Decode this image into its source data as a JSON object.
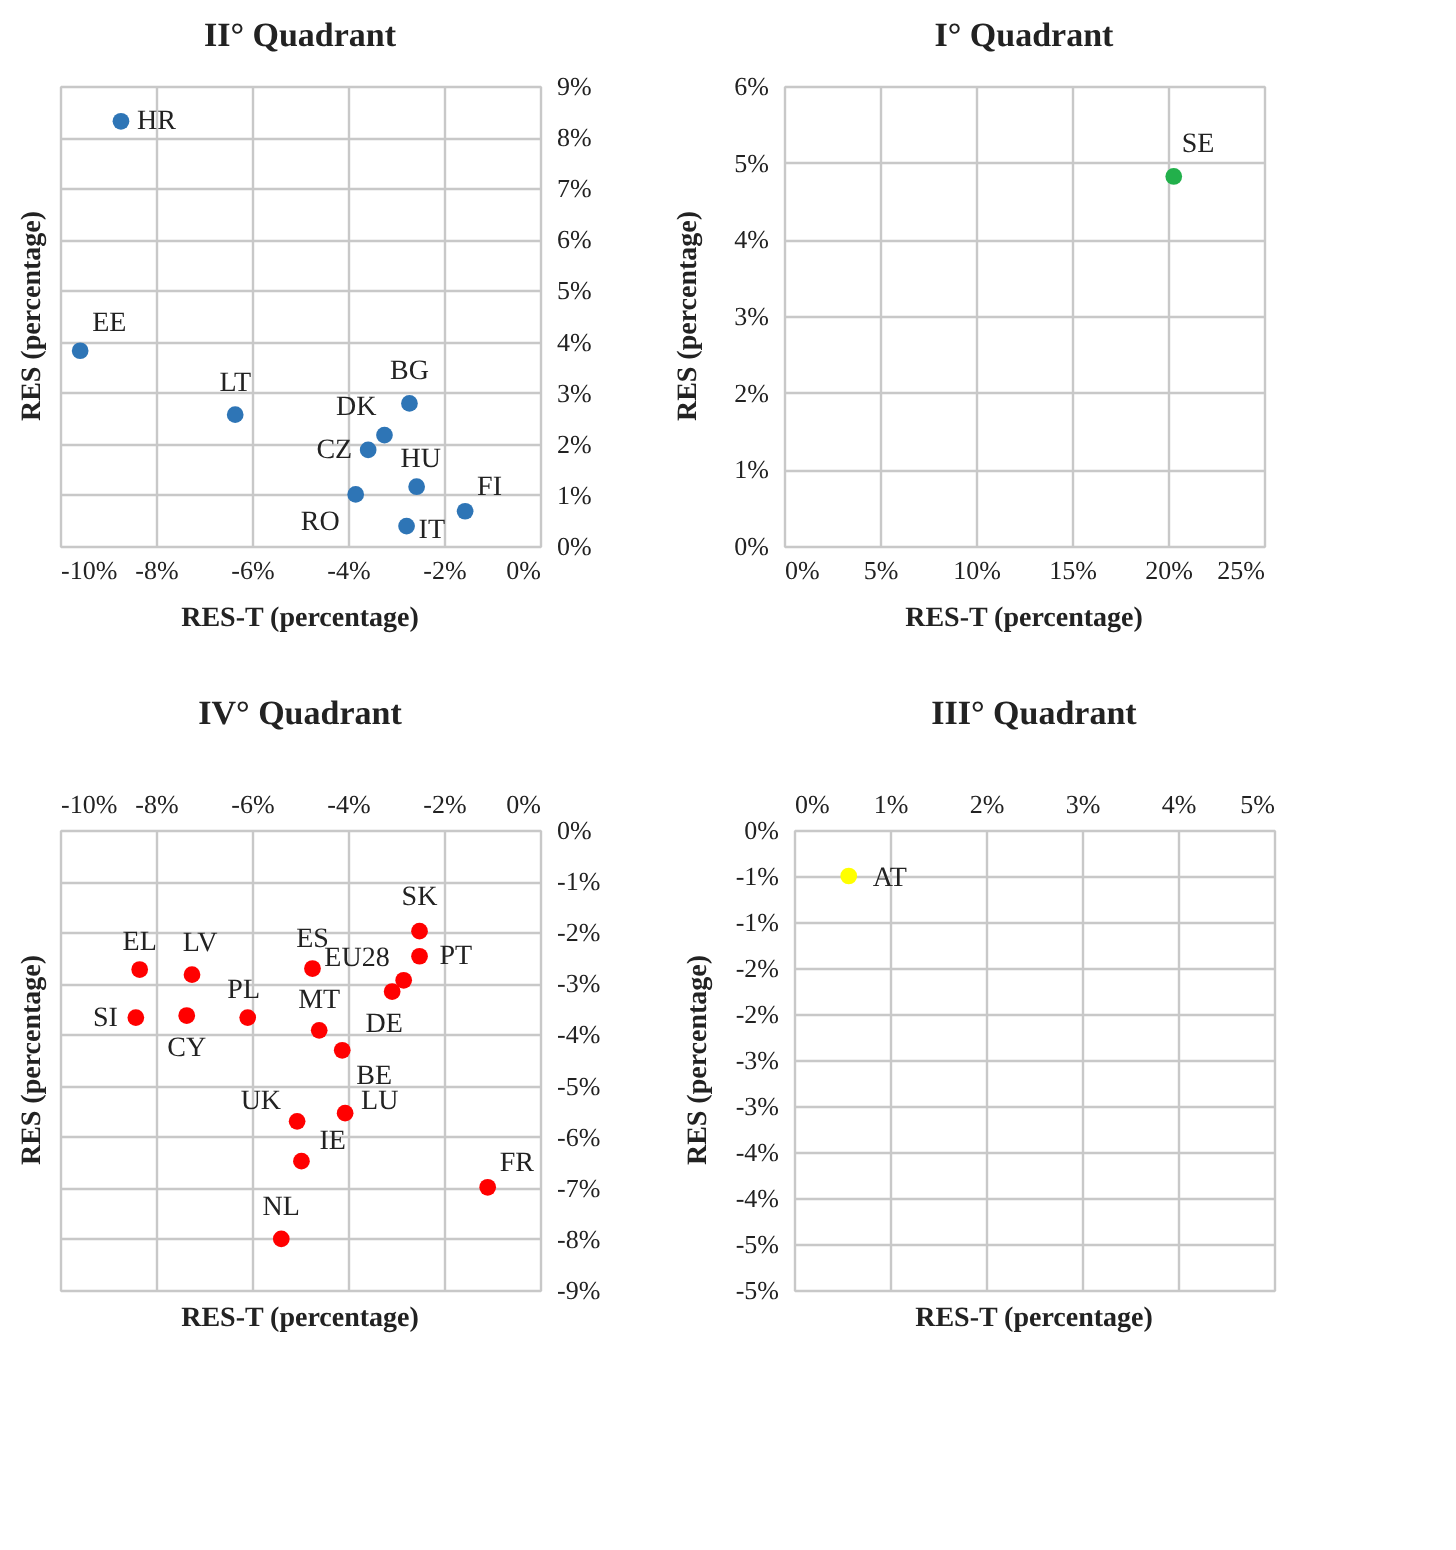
{
  "chart_data": [
    {
      "type": "scatter",
      "title": "II° Quadrant",
      "xlabel": "RES-T (percentage)",
      "ylabel": "RES (percentage)",
      "x": [
        -8.73,
        -9.58,
        -6.35,
        -2.72,
        -3.24,
        -3.58,
        -2.57,
        -1.56,
        -3.84,
        -2.78
      ],
      "series": [
        {
          "color": "#2e75b6",
          "values": [
            8.31,
            3.82,
            2.57,
            2.79,
            2.17,
            1.88,
            1.16,
            0.68,
            1.01,
            0.39
          ]
        }
      ],
      "xlim": [
        -10,
        0
      ],
      "ylim": [
        0,
        9
      ],
      "xticks": [
        {
          "value": -10,
          "label": "-10%"
        },
        {
          "value": -8,
          "label": "-8%"
        },
        {
          "value": -6,
          "label": "-6%"
        },
        {
          "value": -4,
          "label": "-4%"
        },
        {
          "value": -2,
          "label": "-2%"
        },
        {
          "value": 0,
          "label": "0%"
        }
      ],
      "yticks": [
        {
          "value": 0,
          "label": "0%"
        },
        {
          "value": 1,
          "label": "1%"
        },
        {
          "value": 2,
          "label": "2%"
        },
        {
          "value": 3,
          "label": "3%"
        },
        {
          "value": 4,
          "label": "4%"
        },
        {
          "value": 5,
          "label": "5%"
        },
        {
          "value": 6,
          "label": "6%"
        },
        {
          "value": 7,
          "label": "7%"
        },
        {
          "value": 8,
          "label": "8%"
        },
        {
          "value": 9,
          "label": "9%"
        }
      ],
      "grid": true,
      "marker": "circle",
      "annotations": [
        {
          "text": "HR",
          "x": -8.73,
          "y": 8.31
        },
        {
          "text": "EE",
          "x": -9.58,
          "y": 3.82
        },
        {
          "text": "LT",
          "x": -6.35,
          "y": 2.57
        },
        {
          "text": "BG",
          "x": -2.72,
          "y": 2.79
        },
        {
          "text": "DK",
          "x": -3.24,
          "y": 2.17
        },
        {
          "text": "CZ",
          "x": -3.58,
          "y": 1.88
        },
        {
          "text": "HU",
          "x": -2.57,
          "y": 1.16
        },
        {
          "text": "FI",
          "x": -1.56,
          "y": 0.68
        },
        {
          "text": "RO",
          "x": -3.84,
          "y": 1.01
        },
        {
          "text": "IT",
          "x": -2.78,
          "y": 0.39
        }
      ]
    },
    {
      "type": "scatter",
      "title": "I° Quadrant",
      "xlabel": "RES-T (percentage)",
      "ylabel": "RES (percentage)",
      "x": [
        20.3
      ],
      "series": [
        {
          "color": "#22b04b",
          "values": [
            4.82
          ]
        }
      ],
      "xlim": [
        0,
        25
      ],
      "ylim": [
        0,
        6
      ],
      "xticks": [
        {
          "value": 0,
          "label": "0%"
        },
        {
          "value": 5,
          "label": "5%"
        },
        {
          "value": 10,
          "label": "10%"
        },
        {
          "value": 15,
          "label": "15%"
        },
        {
          "value": 20,
          "label": "20%"
        },
        {
          "value": 25,
          "label": "25%"
        }
      ],
      "yticks": [
        {
          "value": 0,
          "label": "0%"
        },
        {
          "value": 1,
          "label": "1%"
        },
        {
          "value": 2,
          "label": "2%"
        },
        {
          "value": 3,
          "label": "3%"
        },
        {
          "value": 4,
          "label": "4%"
        },
        {
          "value": 5,
          "label": "5%"
        },
        {
          "value": 6,
          "label": "6%"
        }
      ],
      "grid": true,
      "marker": "circle",
      "annotations": [
        {
          "text": "SE",
          "x": 20.3,
          "y": 4.82
        }
      ]
    },
    {
      "type": "scatter",
      "title": "IV° Quadrant",
      "xlabel": "RES-T (percentage)",
      "ylabel": "RES (percentage)",
      "x": [
        -8.34,
        -7.25,
        -8.42,
        -7.36,
        -6.09,
        -4.74,
        -2.84,
        -3.08,
        -4.6,
        -4.12,
        -2.51,
        -2.51,
        -5.06,
        -4.06,
        -4.97,
        -1.09,
        -5.39
      ],
      "series": [
        {
          "color": "#ff0000",
          "values": [
            -2.73,
            -2.83,
            -3.67,
            -3.63,
            -3.67,
            -2.71,
            -2.94,
            -3.16,
            -3.92,
            -4.31,
            -1.98,
            -2.47,
            -5.7,
            -5.54,
            -6.48,
            -6.99,
            -8.0
          ]
        }
      ],
      "xlim": [
        -10,
        0
      ],
      "ylim": [
        -9,
        0
      ],
      "xticks": [
        {
          "value": -10,
          "label": "-10%"
        },
        {
          "value": -8,
          "label": "-8%"
        },
        {
          "value": -6,
          "label": "-6%"
        },
        {
          "value": -4,
          "label": "-4%"
        },
        {
          "value": -2,
          "label": "-2%"
        },
        {
          "value": 0,
          "label": "0%"
        }
      ],
      "yticks": [
        {
          "value": 0,
          "label": "0%"
        },
        {
          "value": -1,
          "label": "-1%"
        },
        {
          "value": -2,
          "label": "-2%"
        },
        {
          "value": -3,
          "label": "-3%"
        },
        {
          "value": -4,
          "label": "-4%"
        },
        {
          "value": -5,
          "label": "-5%"
        },
        {
          "value": -6,
          "label": "-6%"
        },
        {
          "value": -7,
          "label": "-7%"
        },
        {
          "value": -8,
          "label": "-8%"
        },
        {
          "value": -9,
          "label": "-9%"
        }
      ],
      "grid": true,
      "marker": "circle",
      "annotations": [
        {
          "text": "EL",
          "x": -8.34,
          "y": -2.73
        },
        {
          "text": "LV",
          "x": -7.25,
          "y": -2.83
        },
        {
          "text": "SI",
          "x": -8.42,
          "y": -3.67
        },
        {
          "text": "CY",
          "x": -7.36,
          "y": -3.63
        },
        {
          "text": "PL",
          "x": -6.09,
          "y": -3.67
        },
        {
          "text": "ES",
          "x": -4.74,
          "y": -2.71
        },
        {
          "text": "EU28",
          "x": -2.84,
          "y": -2.94
        },
        {
          "text": "DE",
          "x": -3.08,
          "y": -3.16
        },
        {
          "text": "MT",
          "x": -4.6,
          "y": -3.92
        },
        {
          "text": "BE",
          "x": -4.12,
          "y": -4.31
        },
        {
          "text": "SK",
          "x": -2.51,
          "y": -1.98
        },
        {
          "text": "PT",
          "x": -2.51,
          "y": -2.47
        },
        {
          "text": "UK",
          "x": -5.06,
          "y": -5.7
        },
        {
          "text": "LU",
          "x": -4.06,
          "y": -5.54
        },
        {
          "text": "IE",
          "x": -4.97,
          "y": -6.48
        },
        {
          "text": "FR",
          "x": -1.09,
          "y": -6.99
        },
        {
          "text": "NL",
          "x": -5.39,
          "y": -8.0
        }
      ]
    },
    {
      "type": "scatter",
      "title": "III° Quadrant",
      "xlabel": "RES-T (percentage)",
      "ylabel": "RES (percentage)",
      "x": [
        0.57
      ],
      "series": [
        {
          "color": "#ffff00",
          "values": [
            -0.5
          ]
        }
      ],
      "xlim": [
        0,
        5
      ],
      "ylim": [
        -5,
        0
      ],
      "xticks": [
        {
          "value": 0,
          "label": "0%"
        },
        {
          "value": 1,
          "label": "1%"
        },
        {
          "value": 2,
          "label": "2%"
        },
        {
          "value": 3,
          "label": "3%"
        },
        {
          "value": 4,
          "label": "4%"
        },
        {
          "value": 5,
          "label": "5%"
        }
      ],
      "yticks": [
        {
          "value": 0,
          "label": "0%"
        },
        {
          "value": -0.5,
          "label": "-1%"
        },
        {
          "value": -1,
          "label": "-1%"
        },
        {
          "value": -1.5,
          "label": "-2%"
        },
        {
          "value": -2,
          "label": "-2%"
        },
        {
          "value": -2.5,
          "label": "-3%"
        },
        {
          "value": -3,
          "label": "-3%"
        },
        {
          "value": -3.5,
          "label": "-4%"
        },
        {
          "value": -4,
          "label": "-4%"
        },
        {
          "value": -4.5,
          "label": "-5%"
        },
        {
          "value": -5,
          "label": "-5%"
        }
      ],
      "grid": true,
      "marker": "circle",
      "annotations": [
        {
          "text": "AT",
          "x": 0.57,
          "y": -0.5
        }
      ]
    }
  ]
}
